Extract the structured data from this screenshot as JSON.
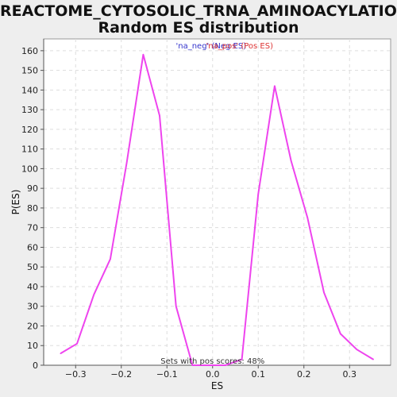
{
  "page": {
    "title_line1": "REACTOME_CYTOSOLIC_TRNA_AMINOACYLATION:",
    "title_line2": "Random ES distribution"
  },
  "colors": {
    "background": "#eeeeee",
    "plot_bg": "#ffffff",
    "line": "#ee44ee",
    "neg_legend": "#3333cc",
    "pos_legend": "#dd3333",
    "grid": "#dddddd"
  },
  "chart_data": {
    "type": "line",
    "xlabel": "ES",
    "ylabel": "P(ES)",
    "xlim": [
      -0.37,
      0.39
    ],
    "ylim": [
      0,
      166
    ],
    "xticks": [
      -0.3,
      -0.2,
      -0.1,
      0.0,
      0.1,
      0.2,
      0.3
    ],
    "xtick_labels": [
      "−0.3",
      "−0.2",
      "−0.1",
      "0.0",
      "0.1",
      "0.2",
      "0.3"
    ],
    "yticks": [
      0,
      10,
      20,
      30,
      40,
      50,
      60,
      70,
      80,
      90,
      100,
      110,
      120,
      130,
      140,
      150,
      160
    ],
    "ytick_labels": [
      "0",
      "10",
      "20",
      "30",
      "40",
      "50",
      "60",
      "70",
      "80",
      "90",
      "100",
      "110",
      "120",
      "130",
      "140",
      "150",
      "160"
    ],
    "grid": true,
    "legend": {
      "placement": "top-center",
      "entries": [
        {
          "label": "'na_neg' (Neg ES)",
          "color": "#3333cc"
        },
        {
          "label": "'na_pos' (Pos ES)",
          "color": "#dd3333"
        }
      ]
    },
    "annotation": "Sets with pos scores: 48%",
    "series": [
      {
        "x": [
          -0.333,
          -0.297,
          -0.26,
          -0.224,
          -0.188,
          -0.152,
          -0.116,
          -0.08,
          -0.044,
          -0.008,
          0.028,
          0.064,
          0.1,
          0.136,
          0.172,
          0.208,
          0.244,
          0.28,
          0.316,
          0.352
        ],
        "values": [
          6,
          11,
          36,
          54,
          103,
          158,
          127,
          30,
          0,
          0,
          0,
          3,
          87,
          142,
          104,
          75,
          37,
          16,
          8,
          3
        ]
      }
    ]
  }
}
